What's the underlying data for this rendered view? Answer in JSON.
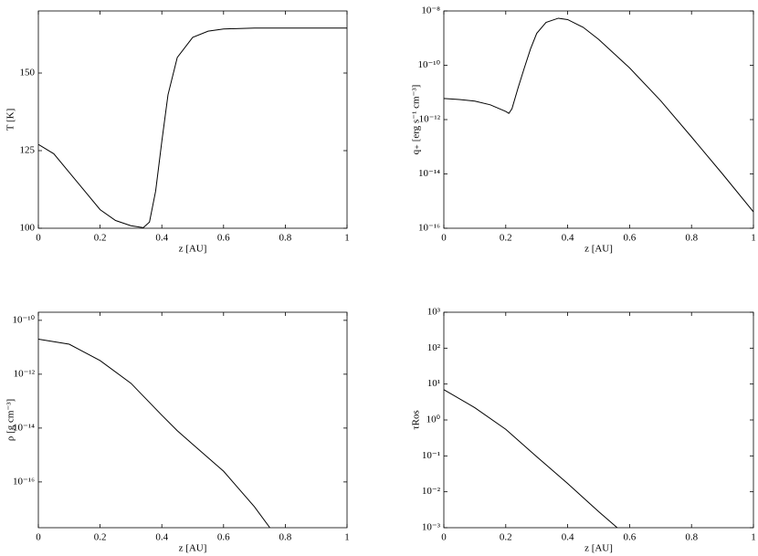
{
  "chart_data": [
    {
      "type": "line",
      "xlabel": "z [AU]",
      "ylabel": "T [K]",
      "color": "#000000",
      "log_y": false,
      "x": [
        0,
        0.05,
        0.1,
        0.15,
        0.2,
        0.25,
        0.3,
        0.34,
        0.36,
        0.38,
        0.4,
        0.42,
        0.45,
        0.5,
        0.55,
        0.6,
        0.7,
        0.8,
        0.9,
        1
      ],
      "values": [
        127,
        124,
        118,
        112,
        106,
        102.5,
        100.8,
        100.2,
        102,
        112,
        128,
        143,
        155,
        161.5,
        163.5,
        164.2,
        164.5,
        164.5,
        164.5,
        164.5
      ],
      "xlim": [
        0,
        1
      ],
      "ylim": [
        100,
        170
      ],
      "xticks": [
        0,
        0.2,
        0.4,
        0.6,
        0.8,
        1
      ],
      "yticks": [
        100,
        125,
        150
      ]
    },
    {
      "type": "line",
      "xlabel": "z [AU]",
      "ylabel": "q₊ [erg s⁻¹ cm⁻³]",
      "color": "#000000",
      "log_y": true,
      "x": [
        0,
        0.05,
        0.1,
        0.15,
        0.2,
        0.21,
        0.22,
        0.24,
        0.26,
        0.28,
        0.3,
        0.33,
        0.37,
        0.4,
        0.45,
        0.5,
        0.6,
        0.7,
        0.8,
        0.9,
        1
      ],
      "values": [
        6e-12,
        5.5e-12,
        4.8e-12,
        3.5e-12,
        2e-12,
        1.7e-12,
        2.5e-12,
        1.5e-11,
        8e-11,
        4e-10,
        1.5e-09,
        3.8e-09,
        5.4e-09,
        4.8e-09,
        2.5e-09,
        9e-10,
        8e-11,
        5e-12,
        2.3e-13,
        1e-14,
        4e-16
      ],
      "xlim": [
        0,
        1
      ],
      "ylim": [
        1e-16,
        1e-08
      ],
      "xticks": [
        0,
        0.2,
        0.4,
        0.6,
        0.8,
        1
      ],
      "yticks": [
        {
          "value": 1e-16,
          "label": "10⁻¹⁶"
        },
        {
          "value": 1e-14,
          "label": "10⁻¹⁴"
        },
        {
          "value": 1e-12,
          "label": "10⁻¹²"
        },
        {
          "value": 1e-10,
          "label": "10⁻¹⁰"
        },
        {
          "value": 1e-08,
          "label": "10⁻⁸"
        }
      ]
    },
    {
      "type": "line",
      "xlabel": "z [AU]",
      "ylabel": "ρ [g cm⁻³]",
      "color": "#000000",
      "log_y": true,
      "x": [
        0,
        0.1,
        0.2,
        0.3,
        0.4,
        0.45,
        0.5,
        0.6,
        0.7,
        0.75
      ],
      "values": [
        2e-11,
        1.3e-11,
        3.2e-12,
        4.6e-13,
        3e-14,
        8e-15,
        2.5e-15,
        2.5e-16,
        1.2e-17,
        2e-18
      ],
      "xlim": [
        0,
        1
      ],
      "ylim": [
        2e-18,
        2e-10
      ],
      "xticks": [
        0,
        0.2,
        0.4,
        0.6,
        0.8,
        1
      ],
      "yticks": [
        {
          "value": 1e-16,
          "label": "10⁻¹⁶"
        },
        {
          "value": 1e-14,
          "label": "10⁻¹⁴"
        },
        {
          "value": 1e-12,
          "label": "10⁻¹²"
        },
        {
          "value": 1e-10,
          "label": "10⁻¹⁰"
        }
      ]
    },
    {
      "type": "line",
      "xlabel": "z [AU]",
      "ylabel": "τRos",
      "color": "#000000",
      "log_y": true,
      "x": [
        0,
        0.1,
        0.2,
        0.3,
        0.4,
        0.5,
        0.56
      ],
      "values": [
        7,
        2.2,
        0.55,
        0.095,
        0.017,
        0.0028,
        0.001
      ],
      "xlim": [
        0,
        1
      ],
      "ylim": [
        0.001,
        1000
      ],
      "xticks": [
        0,
        0.2,
        0.4,
        0.6,
        0.8,
        1
      ],
      "yticks": [
        {
          "value": 0.001,
          "label": "10⁻³"
        },
        {
          "value": 0.01,
          "label": "10⁻²"
        },
        {
          "value": 0.1,
          "label": "10⁻¹"
        },
        {
          "value": 1,
          "label": "10⁰"
        },
        {
          "value": 10,
          "label": "10¹"
        },
        {
          "value": 100,
          "label": "10²"
        },
        {
          "value": 1000,
          "label": "10³"
        }
      ]
    }
  ]
}
